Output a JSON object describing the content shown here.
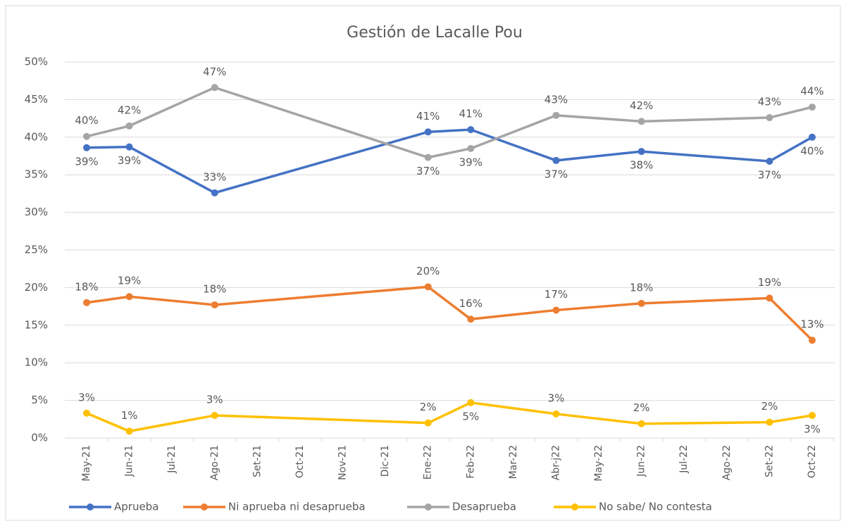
{
  "chart_data": {
    "type": "line",
    "title": "Gestión de Lacalle Pou",
    "categories": [
      "May-21",
      "Jun-21",
      "Jul-21",
      "Ago-21",
      "Set-21",
      "Oct-21",
      "Nov-21",
      "Dic-21",
      "Ene-22",
      "Feb-22",
      "Mar-22",
      "Abr-j22",
      "May-22",
      "Jun-22",
      "Jul-22",
      "Ago-22",
      "Set-22",
      "Oct-22"
    ],
    "span_gaps": true,
    "series": [
      {
        "name": "Aprueba",
        "color": "#4472c4",
        "values": [
          38.6,
          38.7,
          null,
          32.6,
          null,
          null,
          null,
          null,
          40.7,
          41.0,
          null,
          36.9,
          null,
          38.1,
          null,
          null,
          36.8,
          40.0
        ],
        "value_labels": [
          "39%",
          "39%",
          null,
          "33%",
          null,
          null,
          null,
          null,
          "41%",
          "41%",
          null,
          "37%",
          null,
          "38%",
          null,
          null,
          "37%",
          "40%"
        ]
      },
      {
        "name": "Ni aprueba ni desaprueba",
        "color": "#ed7d31",
        "values": [
          18.0,
          18.8,
          null,
          17.7,
          null,
          null,
          null,
          null,
          20.1,
          15.8,
          null,
          17.0,
          null,
          17.9,
          null,
          null,
          18.6,
          13.0
        ],
        "value_labels": [
          "18%",
          "19%",
          null,
          "18%",
          null,
          null,
          null,
          null,
          "20%",
          "16%",
          null,
          "17%",
          null,
          "18%",
          null,
          null,
          "19%",
          "13%"
        ]
      },
      {
        "name": "Desaprueba",
        "color": "#a5a5a5",
        "values": [
          40.1,
          41.5,
          null,
          46.6,
          null,
          null,
          null,
          null,
          37.3,
          38.5,
          null,
          42.9,
          null,
          42.1,
          null,
          null,
          42.6,
          44.0
        ],
        "value_labels": [
          "40%",
          "42%",
          null,
          "47%",
          null,
          null,
          null,
          null,
          "37%",
          "39%",
          null,
          "43%",
          null,
          "42%",
          null,
          null,
          "43%",
          "44%"
        ]
      },
      {
        "name": "No sabe/ No contesta",
        "color": "#ffc000",
        "values": [
          3.3,
          0.9,
          null,
          3.0,
          null,
          null,
          null,
          null,
          2.0,
          4.7,
          null,
          3.2,
          null,
          1.9,
          null,
          null,
          2.1,
          3.0
        ],
        "value_labels": [
          "3%",
          "1%",
          null,
          "3%",
          null,
          null,
          null,
          null,
          "2%",
          "5%",
          null,
          "3%",
          null,
          "2%",
          null,
          null,
          "2%",
          "3%"
        ]
      }
    ],
    "ylim": [
      0,
      50
    ],
    "yticks": [
      {
        "value": 0,
        "label": "0%"
      },
      {
        "value": 5,
        "label": "5%"
      },
      {
        "value": 10,
        "label": "10%"
      },
      {
        "value": 15,
        "label": "15%"
      },
      {
        "value": 20,
        "label": "20%"
      },
      {
        "value": 25,
        "label": "25%"
      },
      {
        "value": 30,
        "label": "30%"
      },
      {
        "value": 35,
        "label": "35%"
      },
      {
        "value": 40,
        "label": "40%"
      },
      {
        "value": 45,
        "label": "45%"
      },
      {
        "value": 50,
        "label": "50%"
      }
    ],
    "grid": true,
    "legend": "bottom"
  }
}
